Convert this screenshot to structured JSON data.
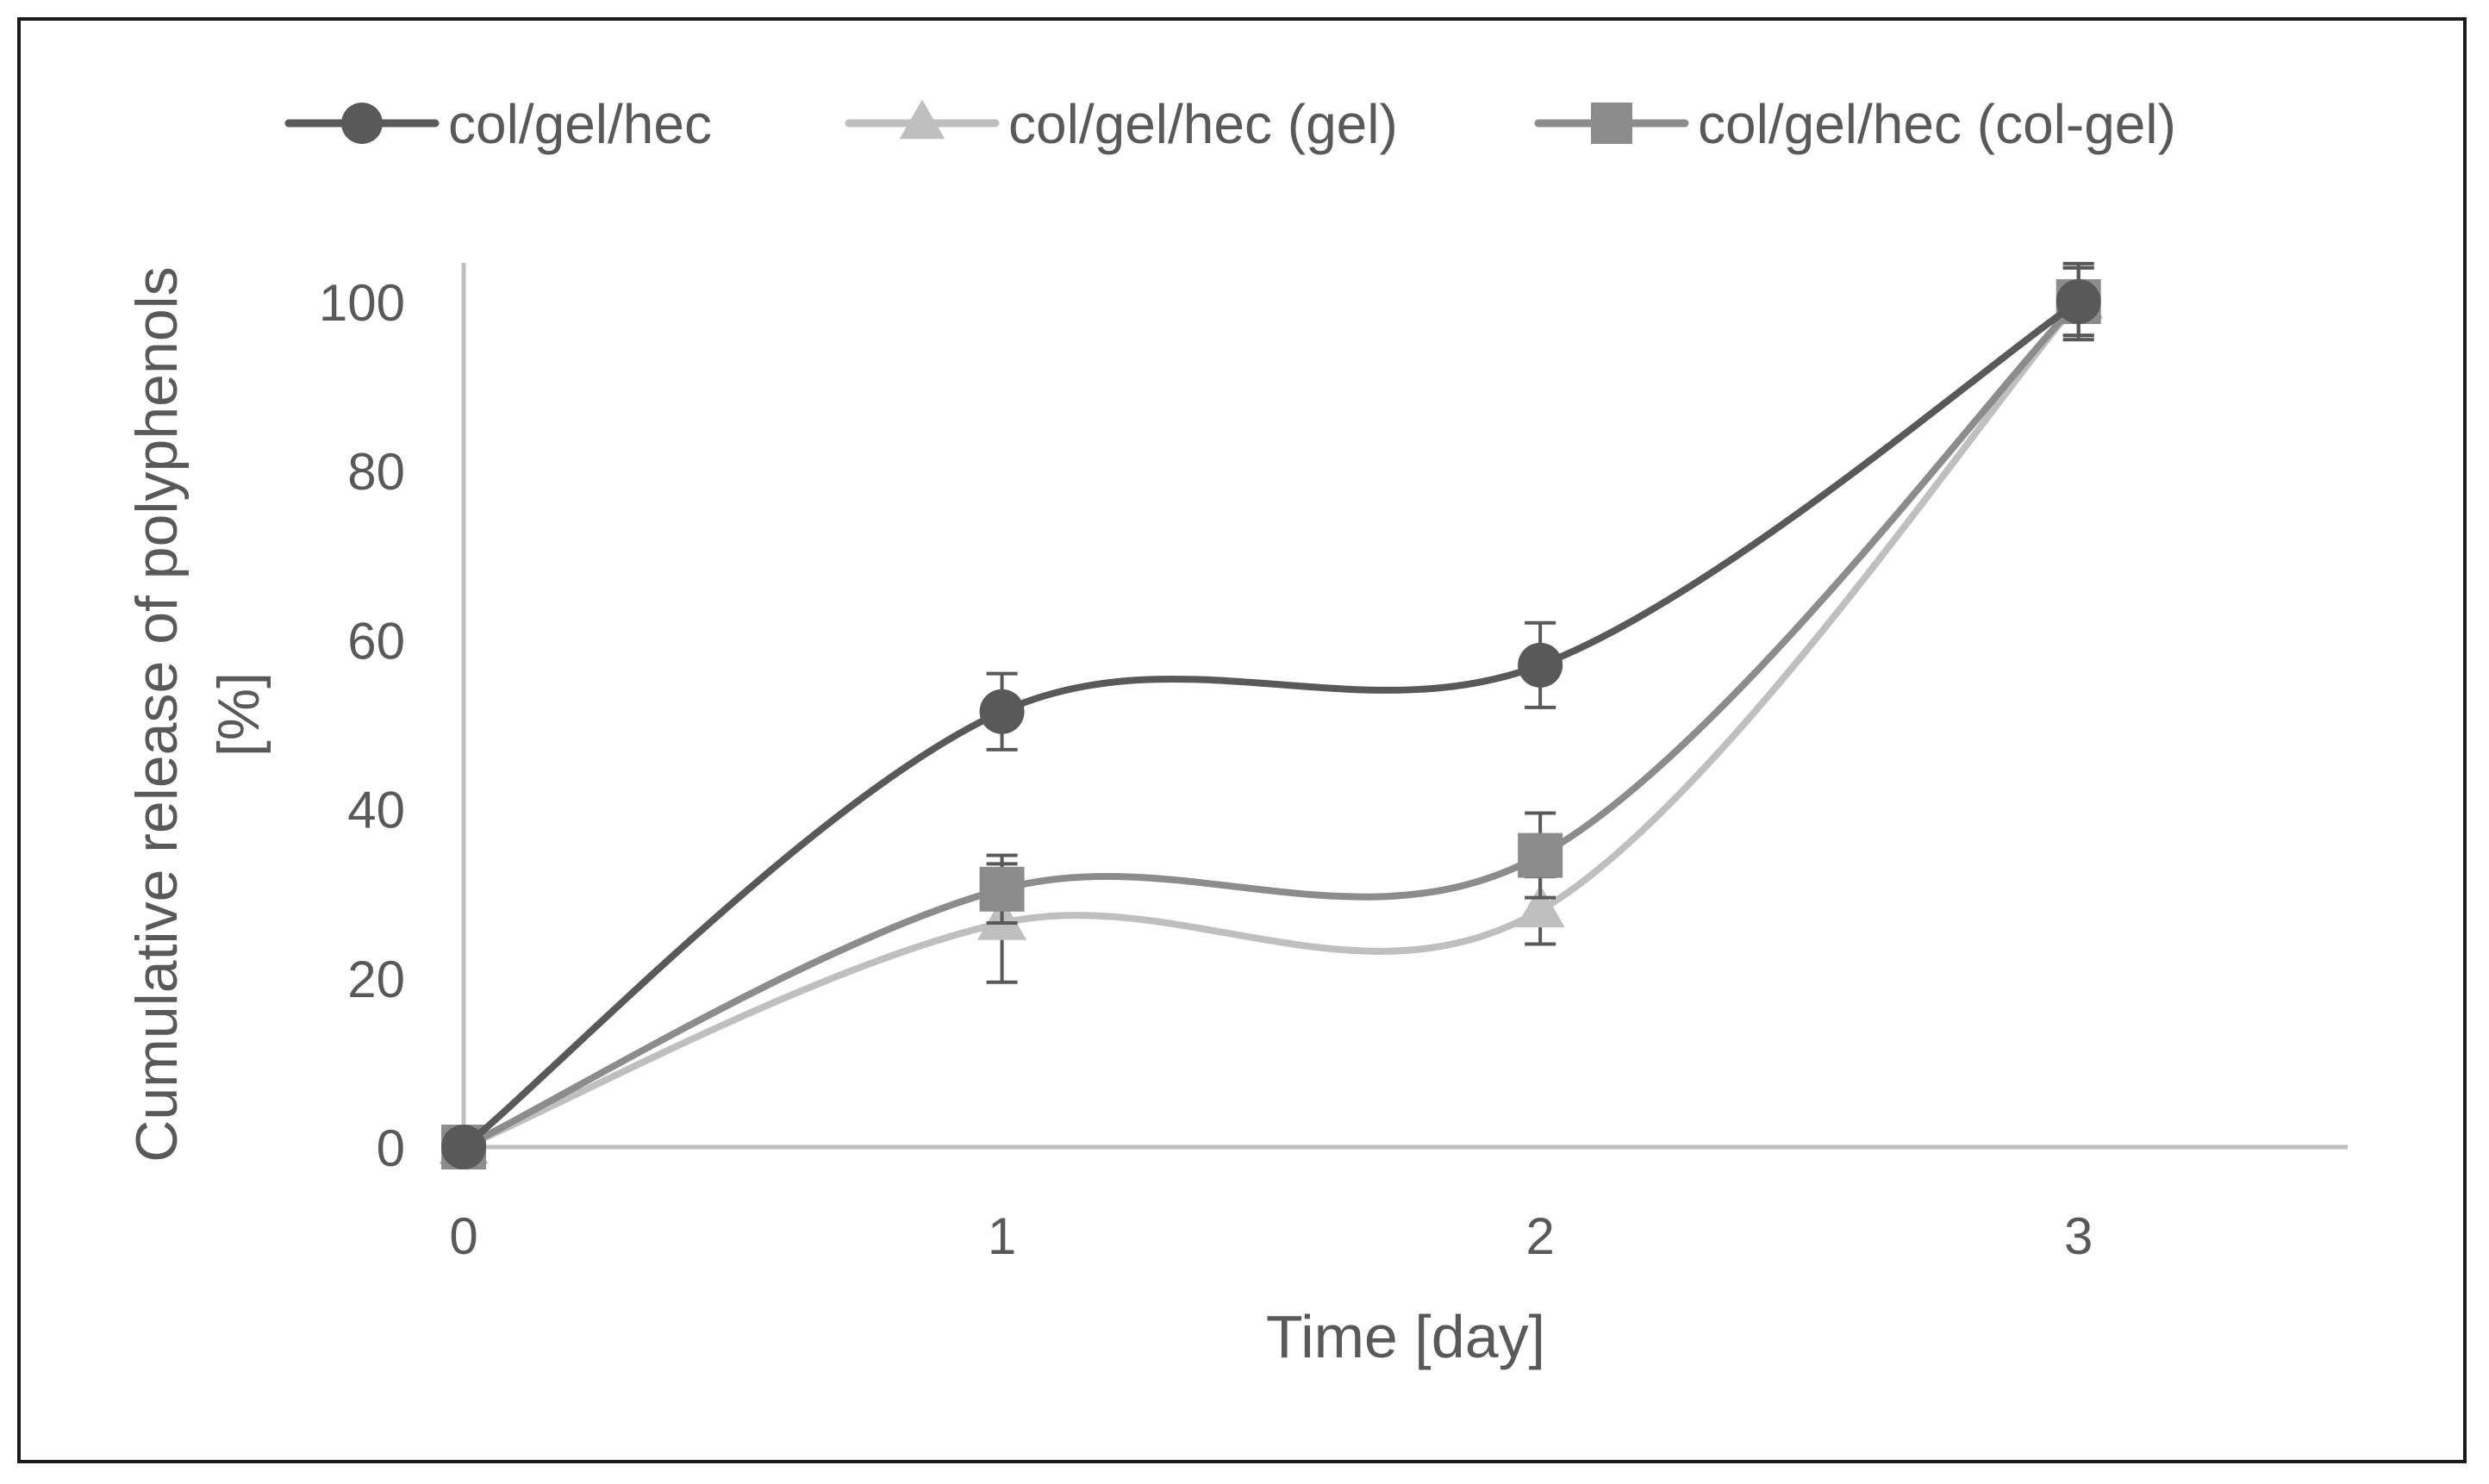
{
  "chart_data": {
    "type": "line",
    "title": "",
    "xlabel": "Time [day]",
    "ylabel": "Cumulative release of polyphenols [%]",
    "ylabel_lines": [
      "Cumulative release of polyphenols",
      "[%]"
    ],
    "x": [
      0,
      1,
      2,
      3
    ],
    "x_tick_labels": [
      "0",
      "1",
      "2",
      "3"
    ],
    "xlim": [
      0,
      3.5
    ],
    "ylim": [
      0,
      100
    ],
    "y_ticks": [
      0,
      20,
      40,
      60,
      80,
      100
    ],
    "y_tick_labels": [
      "0",
      "20",
      "40",
      "60",
      "80",
      "100"
    ],
    "grid": false,
    "smooth": true,
    "legend_position": "top",
    "series": [
      {
        "name": "col/gel/hec",
        "marker": "circle",
        "color": "#595959",
        "values": [
          0,
          51.5,
          57,
          100
        ],
        "errors": [
          0,
          4.5,
          5,
          4.5
        ]
      },
      {
        "name": "col/gel/hec (gel)",
        "marker": "triangle",
        "color": "#bfbfbf",
        "values": [
          0,
          26.5,
          28,
          100
        ],
        "errors": [
          0,
          7,
          4,
          4
        ]
      },
      {
        "name": "col/gel/hec (col-gel)",
        "marker": "square",
        "color": "#8c8c8c",
        "values": [
          0,
          30.5,
          34.5,
          100
        ],
        "errors": [
          0,
          4,
          5,
          4
        ]
      }
    ]
  }
}
